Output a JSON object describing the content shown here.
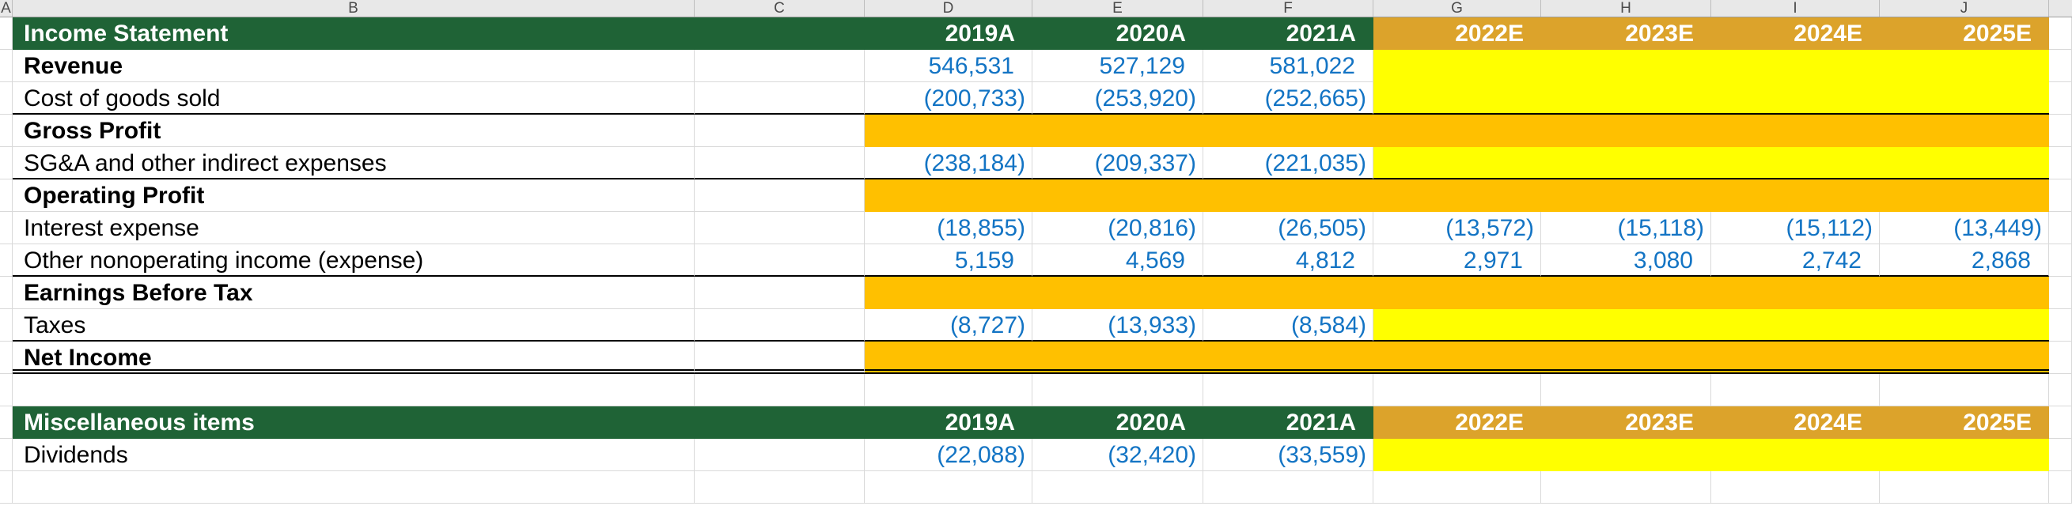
{
  "sheet": {
    "column_letters": [
      "A",
      "B",
      "C",
      "D",
      "E",
      "F",
      "G",
      "H",
      "I",
      "J"
    ],
    "colors": {
      "header_green": "#1F6336",
      "header_gold": "#DCA32B",
      "subtotal_orange": "#FFC000",
      "input_yellow": "#FFFF00",
      "number_blue": "#1374C4",
      "gridline": "#D9D9D9"
    }
  },
  "income_statement": {
    "title": "Income Statement",
    "years_actual": [
      "2019A",
      "2020A",
      "2021A"
    ],
    "years_estimate": [
      "2022E",
      "2023E",
      "2024E",
      "2025E"
    ],
    "rows": [
      {
        "label": "Revenue",
        "bold": true,
        "kind": "input",
        "actuals": [
          "546,531",
          "527,129",
          "581,022"
        ],
        "estimates": [
          "",
          "",
          "",
          ""
        ]
      },
      {
        "label": "Cost of goods sold",
        "bold": false,
        "kind": "input",
        "actuals": [
          "(200,733)",
          "(253,920)",
          "(252,665)"
        ],
        "estimates": [
          "",
          "",
          "",
          ""
        ],
        "separator_below": true
      },
      {
        "label": "Gross Profit",
        "bold": true,
        "kind": "subtotal"
      },
      {
        "label": "SG&A and other indirect expenses",
        "bold": false,
        "kind": "input",
        "actuals": [
          "(238,184)",
          "(209,337)",
          "(221,035)"
        ],
        "estimates": [
          "",
          "",
          "",
          ""
        ],
        "separator_below": true
      },
      {
        "label": "Operating Profit",
        "bold": true,
        "kind": "subtotal"
      },
      {
        "label": "Interest expense",
        "bold": false,
        "kind": "data",
        "actuals": [
          "(18,855)",
          "(20,816)",
          "(26,505)"
        ],
        "estimates": [
          "(13,572)",
          "(15,118)",
          "(15,112)",
          "(13,449)"
        ]
      },
      {
        "label": "Other nonoperating income (expense)",
        "bold": false,
        "kind": "data",
        "actuals": [
          "5,159",
          "4,569",
          "4,812"
        ],
        "estimates": [
          "2,971",
          "3,080",
          "2,742",
          "2,868"
        ],
        "separator_below": true
      },
      {
        "label": "Earnings Before Tax",
        "bold": true,
        "kind": "subtotal"
      },
      {
        "label": "Taxes",
        "bold": false,
        "kind": "input",
        "actuals": [
          "(8,727)",
          "(13,933)",
          "(8,584)"
        ],
        "estimates": [
          "",
          "",
          "",
          ""
        ],
        "separator_below": true
      },
      {
        "label": "Net Income",
        "bold": true,
        "kind": "subtotal",
        "double_below": true
      }
    ]
  },
  "misc_items": {
    "title": "Miscellaneous items",
    "years_actual": [
      "2019A",
      "2020A",
      "2021A"
    ],
    "years_estimate": [
      "2022E",
      "2023E",
      "2024E",
      "2025E"
    ],
    "rows": [
      {
        "label": "Dividends",
        "bold": false,
        "kind": "input",
        "actuals": [
          "(22,088)",
          "(32,420)",
          "(33,559)"
        ],
        "estimates": [
          "",
          "",
          "",
          ""
        ]
      }
    ]
  }
}
